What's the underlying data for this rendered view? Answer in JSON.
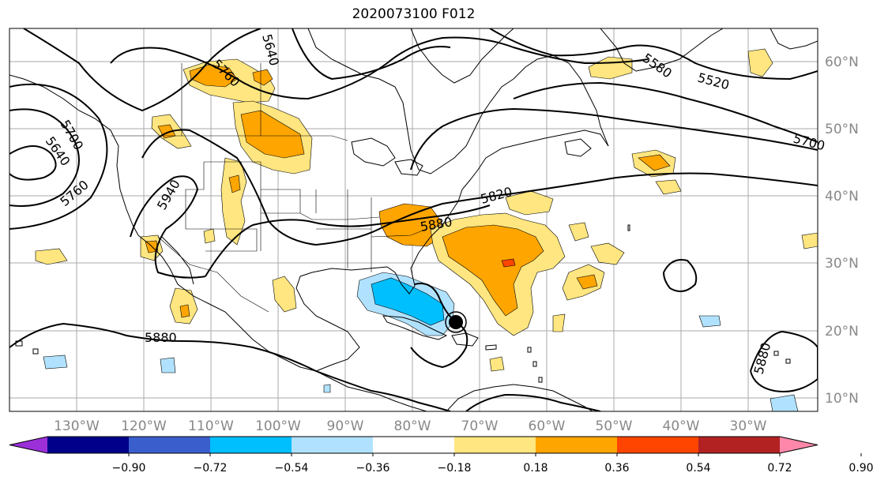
{
  "title": "2020073100 F012",
  "lon_labels": [
    "130°W",
    "120°W",
    "110°W",
    "100°W",
    "90°W",
    "80°W",
    "70°W",
    "60°W",
    "50°W",
    "40°W",
    "30°W"
  ],
  "lat_labels": [
    "60°N",
    "50°N",
    "40°N",
    "30°N",
    "20°N",
    "10°N"
  ],
  "contour_labels": [
    "5640",
    "5760",
    "5520",
    "5580",
    "5700",
    "5640",
    "5700",
    "5760",
    "5940",
    "5820",
    "5880",
    "5880",
    "5880"
  ],
  "colorbar": {
    "ticks": [
      "−0.90",
      "−0.72",
      "−0.54",
      "−0.36",
      "−0.18",
      "0.18",
      "0.36",
      "0.54",
      "0.72",
      "0.90"
    ],
    "colors": [
      "#9b30d9",
      "#00008b",
      "#3a5fcd",
      "#00bfff",
      "#b0e2ff",
      "#ffffff",
      "#ffe680",
      "#ffa500",
      "#ff4500",
      "#b22222",
      "#ff88aa"
    ]
  }
}
